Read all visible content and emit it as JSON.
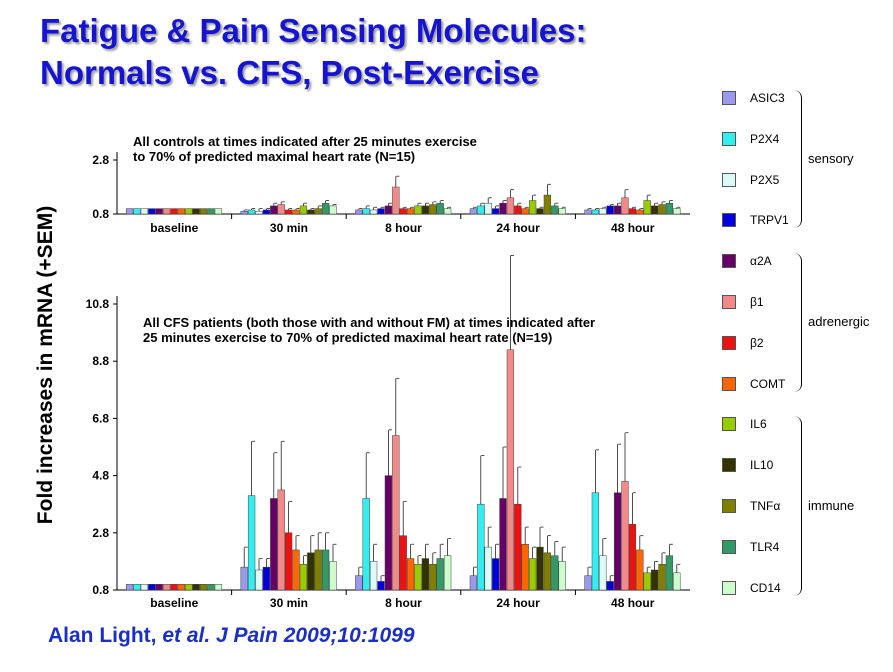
{
  "title_line1": "Fatigue & Pain Sensing Molecules:",
  "title_line2": "Normals vs. CFS, Post-Exercise",
  "ylabel": "Fold increases in mRNA (+SEM)",
  "citation_author": "Alan Light, ",
  "citation_etal": "et al. J Pain 2009;10:1099",
  "legend": {
    "items": [
      {
        "label": "ASIC3",
        "color": "#9999ee"
      },
      {
        "label": "P2X4",
        "color": "#33eeee"
      },
      {
        "label": "P2X5",
        "color": "#ddfafa"
      },
      {
        "label": "TRPV1",
        "color": "#0000dd"
      },
      {
        "label": "α2A",
        "color": "#660066"
      },
      {
        "label": "β1",
        "color": "#f28a8a"
      },
      {
        "label": "β2",
        "color": "#ee1111"
      },
      {
        "label": "COMT",
        "color": "#ff6600"
      },
      {
        "label": "IL6",
        "color": "#99cc00"
      },
      {
        "label": "IL10",
        "color": "#333300"
      },
      {
        "label": "TNFα",
        "color": "#808000"
      },
      {
        "label": "TLR4",
        "color": "#339966"
      },
      {
        "label": "CD14",
        "color": "#ccffcc"
      }
    ],
    "groups": [
      {
        "label": "sensory",
        "first": 0,
        "last": 3
      },
      {
        "label": "adrenergic",
        "first": 4,
        "last": 7
      },
      {
        "label": "immune",
        "first": 8,
        "last": 12
      }
    ]
  },
  "chart_data": [
    {
      "type": "bar",
      "annotation_line1": "All controls at times indicated after 25 minutes exercise",
      "annotation_line2": "to 70% of predicted maximal heart rate (N=15)",
      "categories": [
        "baseline",
        "30 min",
        "8 hour",
        "24 hour",
        "48 hour"
      ],
      "yticks": [
        "0.8",
        "2.8"
      ],
      "ylim": [
        0.8,
        2.8
      ],
      "series": [
        {
          "name": "ASIC3",
          "values": [
            1.0,
            0.9,
            0.95,
            1.0,
            0.95
          ],
          "errors": [
            0,
            0.05,
            0.05,
            0.05,
            0.05
          ]
        },
        {
          "name": "P2X4",
          "values": [
            1.0,
            0.95,
            1.0,
            1.1,
            0.95
          ],
          "errors": [
            0,
            0.05,
            0.1,
            0.1,
            0.05
          ]
        },
        {
          "name": "P2X5",
          "values": [
            1.0,
            0.9,
            0.95,
            1.2,
            1.0
          ],
          "errors": [
            0,
            0.1,
            0.1,
            0.2,
            0.05
          ]
        },
        {
          "name": "TRPV1",
          "values": [
            1.0,
            0.95,
            1.0,
            1.0,
            1.1
          ],
          "errors": [
            0,
            0.05,
            0.05,
            0.1,
            0.05
          ]
        },
        {
          "name": "α2A",
          "values": [
            1.0,
            1.1,
            1.1,
            1.2,
            1.1
          ],
          "errors": [
            0,
            0.1,
            0.1,
            0.1,
            0.1
          ]
        },
        {
          "name": "β1",
          "values": [
            1.0,
            1.15,
            1.8,
            1.4,
            1.4
          ],
          "errors": [
            0,
            0.1,
            0.4,
            0.3,
            0.3
          ]
        },
        {
          "name": "β2",
          "values": [
            1.0,
            0.95,
            1.0,
            1.1,
            1.0
          ],
          "errors": [
            0,
            0.05,
            0.05,
            0.1,
            0.05
          ]
        },
        {
          "name": "COMT",
          "values": [
            1.0,
            0.95,
            1.0,
            1.0,
            0.95
          ],
          "errors": [
            0,
            0.05,
            0.05,
            0.05,
            0.05
          ]
        },
        {
          "name": "IL6",
          "values": [
            1.0,
            1.1,
            1.1,
            1.3,
            1.3
          ],
          "errors": [
            0,
            0.1,
            0.1,
            0.2,
            0.2
          ]
        },
        {
          "name": "IL10",
          "values": [
            1.0,
            0.95,
            1.1,
            1.0,
            1.1
          ],
          "errors": [
            0,
            0.05,
            0.1,
            0.05,
            0.1
          ]
        },
        {
          "name": "TNFα",
          "values": [
            1.0,
            1.0,
            1.15,
            1.5,
            1.15
          ],
          "errors": [
            0,
            0.1,
            0.1,
            0.4,
            0.1
          ]
        },
        {
          "name": "TLR4",
          "values": [
            1.0,
            1.2,
            1.2,
            1.1,
            1.2
          ],
          "errors": [
            0,
            0.1,
            0.1,
            0.1,
            0.1
          ]
        },
        {
          "name": "CD14",
          "values": [
            1.0,
            1.1,
            1.0,
            1.0,
            1.0
          ],
          "errors": [
            0,
            0.05,
            0.05,
            0.05,
            0.05
          ]
        }
      ]
    },
    {
      "type": "bar",
      "annotation_line1": "All CFS patients (both those with and without FM) at times indicated after",
      "annotation_line2": "25 minutes exercise to 70% of predicted maximal heart rate (N=19)",
      "categories": [
        "baseline",
        "30 min",
        "8 hour",
        "24 hour",
        "48 hour"
      ],
      "yticks": [
        "0.8",
        "2.8",
        "4.8",
        "6.8",
        "8.8",
        "10.8"
      ],
      "ylim": [
        0.8,
        10.8
      ],
      "series": [
        {
          "name": "ASIC3",
          "values": [
            1.0,
            1.6,
            1.3,
            1.3,
            1.3
          ],
          "errors": [
            0,
            0.7,
            0.3,
            0.3,
            0.3
          ]
        },
        {
          "name": "P2X4",
          "values": [
            1.0,
            4.1,
            4.0,
            3.8,
            4.2
          ],
          "errors": [
            0,
            1.9,
            1.6,
            1.7,
            1.5
          ]
        },
        {
          "name": "P2X5",
          "values": [
            1.0,
            1.5,
            1.8,
            2.3,
            2.0
          ],
          "errors": [
            0,
            0.4,
            0.6,
            0.7,
            0.6
          ]
        },
        {
          "name": "TRPV1",
          "values": [
            1.0,
            1.6,
            1.1,
            1.9,
            1.1
          ],
          "errors": [
            0,
            0.3,
            0.2,
            0.5,
            0.2
          ]
        },
        {
          "name": "α2A",
          "values": [
            1.0,
            4.0,
            4.8,
            4.0,
            4.2
          ],
          "errors": [
            0,
            1.6,
            1.6,
            1.8,
            1.7
          ]
        },
        {
          "name": "β1",
          "values": [
            1.0,
            4.3,
            6.2,
            9.2,
            4.6
          ],
          "errors": [
            0,
            1.7,
            2.0,
            3.3,
            1.7
          ]
        },
        {
          "name": "β2",
          "values": [
            1.0,
            2.8,
            2.7,
            3.8,
            3.1
          ],
          "errors": [
            0,
            1.1,
            1.2,
            1.3,
            1.1
          ]
        },
        {
          "name": "COMT",
          "values": [
            1.0,
            2.2,
            1.9,
            2.4,
            2.2
          ],
          "errors": [
            0,
            0.5,
            0.5,
            0.6,
            0.5
          ]
        },
        {
          "name": "IL6",
          "values": [
            1.0,
            1.7,
            1.7,
            1.9,
            1.4
          ],
          "errors": [
            0,
            0.3,
            0.3,
            0.4,
            0.2
          ]
        },
        {
          "name": "IL10",
          "values": [
            1.0,
            2.1,
            1.9,
            2.3,
            1.5
          ],
          "errors": [
            0,
            0.6,
            0.5,
            0.7,
            0.3
          ]
        },
        {
          "name": "TNFα",
          "values": [
            1.0,
            2.2,
            1.7,
            2.1,
            1.7
          ],
          "errors": [
            0,
            0.6,
            0.4,
            0.6,
            0.4
          ]
        },
        {
          "name": "TLR4",
          "values": [
            1.0,
            2.2,
            1.9,
            2.0,
            2.0
          ],
          "errors": [
            0,
            0.6,
            0.5,
            0.5,
            0.4
          ]
        },
        {
          "name": "CD14",
          "values": [
            1.0,
            1.8,
            2.0,
            1.8,
            1.4
          ],
          "errors": [
            0,
            0.6,
            0.6,
            0.5,
            0.3
          ]
        }
      ]
    }
  ]
}
